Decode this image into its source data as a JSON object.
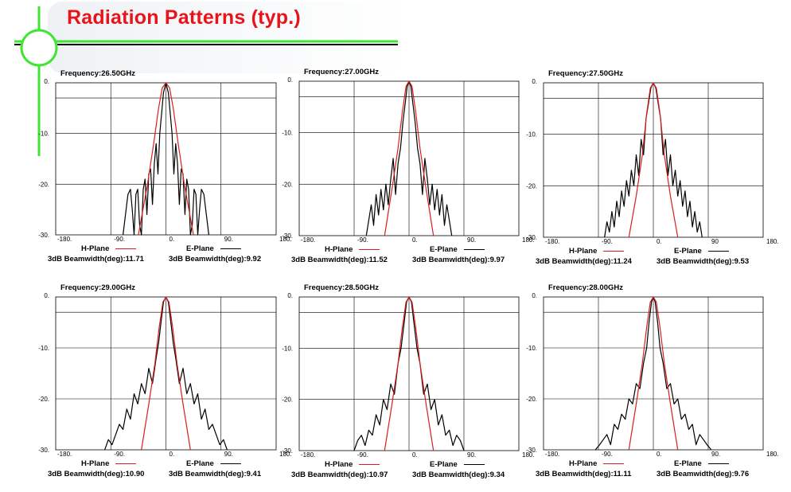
{
  "title": "Radiation Patterns (typ.)",
  "colors": {
    "title": "#e8141b",
    "accent_green": "#3ee632",
    "h_plane": "#d42020",
    "e_plane": "#000000"
  },
  "legend": {
    "h_label": "H-Plane",
    "e_label": "E-Plane",
    "bw_prefix": "3dB Beamwidth(deg):"
  },
  "chart_data": [
    {
      "type": "line",
      "frequency_label": "Frequency:26.50GHz",
      "x_ticks": [
        "-180.",
        "-90.",
        "0.",
        "90.",
        "180."
      ],
      "y_ticks": [
        "0.",
        "-10.",
        "-20.",
        "-30."
      ],
      "xlim": [
        -180,
        180
      ],
      "ylim": [
        -30,
        0
      ],
      "h_bw": "3dB Beamwidth(deg):11.71",
      "e_bw": "3dB Beamwidth(deg):9.92",
      "series": [
        {
          "name": "H-Plane",
          "x": [
            -45,
            -30,
            -20,
            -12,
            -6,
            0,
            6,
            12,
            20,
            30,
            45
          ],
          "y": [
            -30,
            -20,
            -12,
            -5,
            -1,
            0,
            -1,
            -5,
            -12,
            -20,
            -30
          ]
        },
        {
          "name": "E-Plane",
          "x": [
            -70,
            -66,
            -62,
            -58,
            -55,
            -52,
            -49,
            -46,
            -43,
            -40,
            -37,
            -34,
            -31,
            -28,
            -25,
            -22,
            -19,
            -16,
            -13,
            -10,
            -7,
            -4,
            0,
            4,
            7,
            10,
            13,
            16,
            19,
            22,
            25,
            28,
            31,
            34,
            37,
            40,
            43,
            46,
            49,
            52,
            55,
            58,
            62,
            66,
            70
          ],
          "y": [
            -30,
            -26,
            -22,
            -21,
            -25,
            -30,
            -22,
            -21,
            -28,
            -30,
            -21,
            -19,
            -26,
            -18,
            -17,
            -24,
            -16,
            -12,
            -18,
            -10,
            -6,
            -2,
            0,
            -2,
            -6,
            -10,
            -18,
            -12,
            -16,
            -24,
            -17,
            -18,
            -26,
            -19,
            -21,
            -30,
            -28,
            -21,
            -22,
            -30,
            -25,
            -21,
            -22,
            -26,
            -30
          ]
        }
      ]
    },
    {
      "type": "line",
      "frequency_label": "Frequency:27.00GHz",
      "x_ticks": [
        "-180.",
        "-90.",
        "0.",
        "90.",
        "180."
      ],
      "y_ticks": [
        "0.",
        "-10.",
        "-20.",
        "-30."
      ],
      "xlim": [
        -180,
        180
      ],
      "ylim": [
        -30,
        0
      ],
      "h_bw": "3dB Beamwidth(deg):11.52",
      "e_bw": "3dB Beamwidth(deg):9.97",
      "series": [
        {
          "name": "H-Plane",
          "x": [
            -40,
            -28,
            -18,
            -11,
            -5,
            0,
            5,
            11,
            18,
            28,
            40
          ],
          "y": [
            -30,
            -21,
            -13,
            -6,
            -1,
            0,
            -1,
            -6,
            -13,
            -21,
            -30
          ]
        },
        {
          "name": "E-Plane",
          "x": [
            -70,
            -66,
            -62,
            -58,
            -54,
            -50,
            -46,
            -42,
            -38,
            -34,
            -30,
            -26,
            -22,
            -18,
            -14,
            -10,
            -6,
            -3,
            0,
            3,
            6,
            10,
            14,
            18,
            22,
            26,
            30,
            34,
            38,
            42,
            46,
            50,
            54,
            58,
            62,
            66,
            70
          ],
          "y": [
            -30,
            -27,
            -24,
            -28,
            -22,
            -26,
            -21,
            -25,
            -20,
            -24,
            -19,
            -15,
            -22,
            -16,
            -13,
            -8,
            -4,
            -1,
            0,
            -1,
            -4,
            -8,
            -13,
            -16,
            -22,
            -15,
            -19,
            -24,
            -20,
            -25,
            -21,
            -26,
            -22,
            -28,
            -24,
            -27,
            -30
          ]
        }
      ]
    },
    {
      "type": "line",
      "frequency_label": "Frequency:27.50GHz",
      "x_ticks": [
        "-180.",
        "-90.",
        "0.",
        "90",
        "180."
      ],
      "y_ticks": [
        "0.",
        "-10.",
        "-20.",
        "-30."
      ],
      "xlim": [
        -180,
        180
      ],
      "ylim": [
        -30,
        0
      ],
      "h_bw": "3dB Beamwidth(deg):11.24",
      "e_bw": "3dB Beamwidth(deg):9.53",
      "series": [
        {
          "name": "H-Plane",
          "x": [
            -40,
            -28,
            -18,
            -11,
            -5,
            0,
            5,
            11,
            18,
            28,
            40
          ],
          "y": [
            -30,
            -22,
            -14,
            -6,
            -1,
            0,
            -1,
            -6,
            -14,
            -22,
            -30
          ]
        },
        {
          "name": "E-Plane",
          "x": [
            -80,
            -76,
            -72,
            -68,
            -64,
            -60,
            -56,
            -52,
            -48,
            -44,
            -40,
            -36,
            -32,
            -28,
            -24,
            -20,
            -16,
            -12,
            -8,
            -4,
            0,
            4,
            8,
            12,
            16,
            20,
            24,
            28,
            32,
            36,
            40,
            44,
            48,
            52,
            56,
            60,
            64,
            68,
            72,
            76,
            80
          ],
          "y": [
            -30,
            -27,
            -29,
            -25,
            -28,
            -23,
            -26,
            -21,
            -24,
            -19,
            -22,
            -17,
            -20,
            -14,
            -18,
            -11,
            -14,
            -7,
            -4,
            -1,
            0,
            -1,
            -4,
            -7,
            -14,
            -11,
            -18,
            -14,
            -20,
            -17,
            -22,
            -19,
            -24,
            -21,
            -26,
            -23,
            -28,
            -25,
            -29,
            -27,
            -30
          ]
        }
      ]
    },
    {
      "type": "line",
      "frequency_label": "Frequency:29.00GHz",
      "x_ticks": [
        "-180.",
        "-90.",
        "0.",
        "90.",
        "180."
      ],
      "y_ticks": [
        "0.",
        "-10.",
        "-20.",
        "-30."
      ],
      "xlim": [
        -180,
        180
      ],
      "ylim": [
        -30,
        0
      ],
      "h_bw": "3dB Beamwidth(deg):10.90",
      "e_bw": "3dB Beamwidth(deg):9.41",
      "series": [
        {
          "name": "H-Plane",
          "x": [
            -40,
            -28,
            -18,
            -11,
            -5,
            0,
            5,
            11,
            18,
            28,
            40
          ],
          "y": [
            -30,
            -21,
            -13,
            -6,
            -1,
            0,
            -1,
            -6,
            -13,
            -21,
            -30
          ]
        },
        {
          "name": "E-Plane",
          "x": [
            -100,
            -94,
            -88,
            -82,
            -76,
            -70,
            -64,
            -58,
            -52,
            -46,
            -40,
            -34,
            -28,
            -22,
            -16,
            -12,
            -8,
            -4,
            0,
            4,
            8,
            12,
            16,
            22,
            28,
            34,
            40,
            46,
            52,
            58,
            64,
            70,
            76,
            82,
            88,
            94,
            100
          ],
          "y": [
            -30,
            -28,
            -29,
            -27,
            -25,
            -26,
            -22,
            -24,
            -19,
            -21,
            -17,
            -19,
            -14,
            -17,
            -12,
            -9,
            -5,
            -1,
            0,
            -1,
            -5,
            -9,
            -12,
            -17,
            -14,
            -19,
            -17,
            -21,
            -19,
            -24,
            -22,
            -26,
            -25,
            -27,
            -29,
            -28,
            -30
          ]
        }
      ]
    },
    {
      "type": "line",
      "frequency_label": "Frequency:28.50GHz",
      "x_ticks": [
        "-180.",
        "-90.",
        "0.",
        "90.",
        "180."
      ],
      "y_ticks": [
        "0.",
        "-10.",
        "-20.",
        "-30."
      ],
      "xlim": [
        -180,
        180
      ],
      "ylim": [
        -30,
        0
      ],
      "h_bw": "3dB Beamwidth(deg):10.97",
      "e_bw": "3dB Beamwidth(deg):9.34",
      "series": [
        {
          "name": "H-Plane",
          "x": [
            -40,
            -28,
            -18,
            -11,
            -5,
            0,
            5,
            11,
            18,
            28,
            40
          ],
          "y": [
            -30,
            -21,
            -13,
            -6,
            -1,
            0,
            -1,
            -6,
            -13,
            -21,
            -30
          ]
        },
        {
          "name": "E-Plane",
          "x": [
            -90,
            -84,
            -78,
            -72,
            -66,
            -60,
            -54,
            -48,
            -42,
            -36,
            -30,
            -24,
            -18,
            -13,
            -8,
            -4,
            0,
            4,
            8,
            13,
            18,
            24,
            30,
            36,
            42,
            48,
            54,
            60,
            66,
            72,
            78,
            84,
            90
          ],
          "y": [
            -30,
            -28,
            -27,
            -29,
            -26,
            -27,
            -23,
            -25,
            -20,
            -22,
            -17,
            -19,
            -13,
            -10,
            -5,
            -1,
            0,
            -1,
            -5,
            -10,
            -13,
            -19,
            -17,
            -22,
            -20,
            -25,
            -23,
            -27,
            -26,
            -29,
            -27,
            -28,
            -30
          ]
        }
      ]
    },
    {
      "type": "line",
      "frequency_label": "Frequency:28.00GHz",
      "x_ticks": [
        "-180.",
        "-90.",
        "0.",
        "90.",
        "180."
      ],
      "y_ticks": [
        "0.",
        "-10.",
        "-20.",
        "-30."
      ],
      "xlim": [
        -180,
        180
      ],
      "ylim": [
        -30,
        0
      ],
      "h_bw": "3dB Beamwidth(deg):11.11",
      "e_bw": "3dB Beamwidth(deg):9.76",
      "series": [
        {
          "name": "H-Plane",
          "x": [
            -40,
            -28,
            -18,
            -11,
            -5,
            0,
            5,
            11,
            18,
            28,
            40
          ],
          "y": [
            -30,
            -21,
            -13,
            -6,
            -1,
            0,
            -1,
            -6,
            -13,
            -21,
            -30
          ]
        },
        {
          "name": "E-Plane",
          "x": [
            -95,
            -88,
            -82,
            -76,
            -70,
            -64,
            -58,
            -52,
            -46,
            -40,
            -34,
            -28,
            -22,
            -16,
            -11,
            -7,
            -3,
            0,
            3,
            7,
            11,
            16,
            22,
            28,
            34,
            40,
            46,
            52,
            58,
            64,
            70,
            76,
            82,
            88,
            95
          ],
          "y": [
            -30,
            -29,
            -28,
            -27,
            -29,
            -25,
            -26,
            -23,
            -24,
            -20,
            -21,
            -17,
            -18,
            -13,
            -10,
            -5,
            -1,
            0,
            -1,
            -5,
            -10,
            -13,
            -18,
            -17,
            -21,
            -20,
            -24,
            -23,
            -26,
            -25,
            -29,
            -27,
            -28,
            -29,
            -30
          ]
        }
      ]
    }
  ]
}
